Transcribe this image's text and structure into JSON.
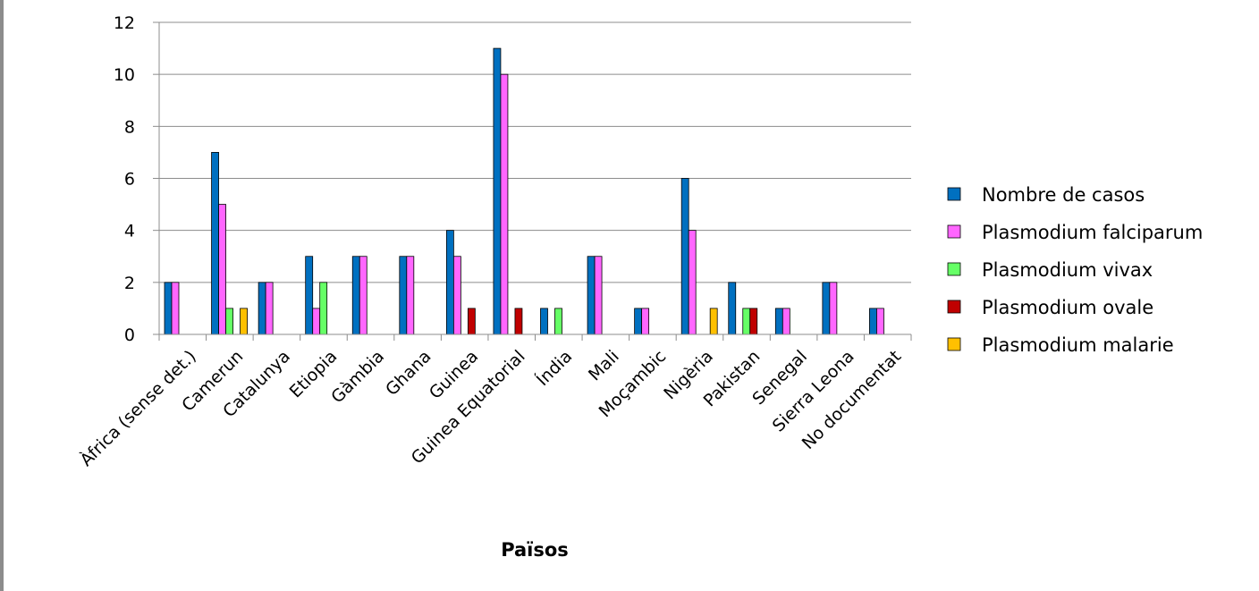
{
  "chart_data": {
    "type": "bar",
    "title": "",
    "xlabel": "Països",
    "ylabel": "",
    "ylim": [
      0,
      12
    ],
    "yticks": [
      0,
      2,
      4,
      6,
      8,
      10,
      12
    ],
    "grid": "horizontal",
    "legend_position": "right",
    "categories": [
      "Àfrica (sense det.)",
      "Camerun",
      "Catalunya",
      "Etiopia",
      "Gàmbia",
      "Ghana",
      "Guinea",
      "Guinea Equatorial",
      "Índia",
      "Mali",
      "Moçambic",
      "Nigèria",
      "Pakistan",
      "Senegal",
      "Sierra Leona",
      "No documentat"
    ],
    "series": [
      {
        "name": "Nombre de casos",
        "color": "#0070C0",
        "values": [
          2,
          7,
          2,
          3,
          3,
          3,
          4,
          11,
          1,
          3,
          1,
          6,
          2,
          1,
          2,
          1
        ]
      },
      {
        "name": "Plasmodium falciparum",
        "color": "#FF66FF",
        "values": [
          2,
          5,
          2,
          1,
          3,
          3,
          3,
          10,
          0,
          3,
          1,
          4,
          0,
          1,
          2,
          1
        ]
      },
      {
        "name": "Plasmodium vivax",
        "color": "#66FF66",
        "values": [
          0,
          1,
          0,
          2,
          0,
          0,
          0,
          0,
          1,
          0,
          0,
          0,
          1,
          0,
          0,
          0
        ]
      },
      {
        "name": "Plasmodium ovale",
        "color": "#C00000",
        "values": [
          0,
          0,
          0,
          0,
          0,
          0,
          1,
          1,
          0,
          0,
          0,
          0,
          1,
          0,
          0,
          0
        ]
      },
      {
        "name": "Plasmodium malarie",
        "color": "#FFC000",
        "values": [
          0,
          1,
          0,
          0,
          0,
          0,
          0,
          0,
          0,
          0,
          0,
          1,
          0,
          0,
          0,
          0
        ]
      }
    ]
  }
}
